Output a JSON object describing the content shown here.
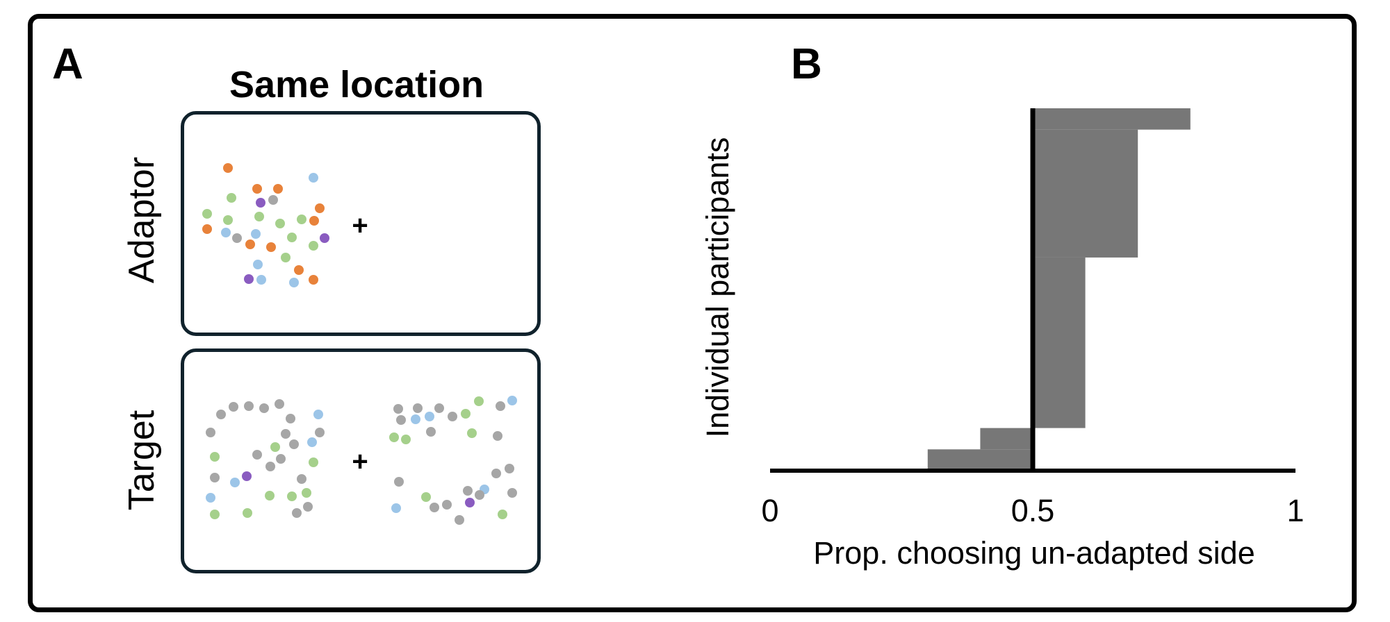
{
  "panel_a": {
    "label": "A",
    "title": "Same location",
    "adaptor_label": "Adaptor",
    "target_label": "Target",
    "fixation": "+",
    "colors": {
      "orange": "#e8823a",
      "green": "#a5d08b",
      "blue": "#9cc5e8",
      "gray": "#a6a6a6",
      "purple": "#8a5cc0"
    }
  },
  "panel_b": {
    "label": "B",
    "ylabel": "Individual participants",
    "xlabel": "Prop. choosing un-adapted side"
  },
  "chart_data": {
    "type": "bar",
    "orientation": "horizontal",
    "title": "",
    "xlabel": "Prop. choosing un-adapted side",
    "ylabel": "Individual participants",
    "xlim": [
      0,
      1
    ],
    "x_ticks": [
      "0",
      "0.5",
      "1"
    ],
    "reference_line": 0.5,
    "baseline": 0.5,
    "participants_bottom_to_top": [
      {
        "value": 0.3,
        "count": 1
      },
      {
        "value": 0.4,
        "count": 1
      },
      {
        "value": 0.6,
        "count": 8
      },
      {
        "value": 0.7,
        "count": 6
      },
      {
        "value": 0.8,
        "count": 1
      }
    ],
    "bar_color": "#777777"
  }
}
